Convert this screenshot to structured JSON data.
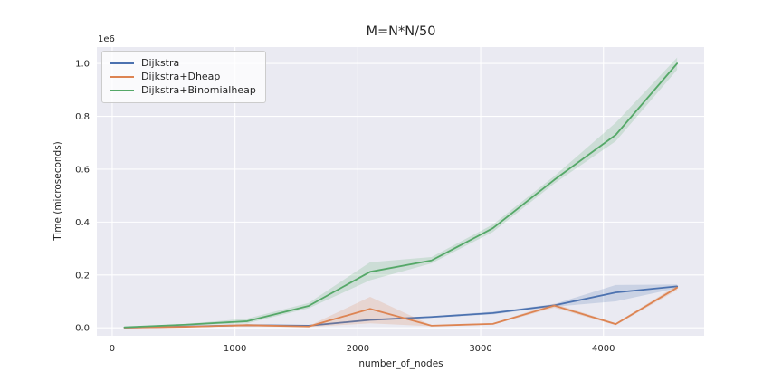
{
  "style": {
    "figure_background": "#ffffff",
    "plot_background": "#eaeaf2",
    "grid_color": "#ffffff",
    "text_color": "#262626",
    "legend_border_color": "#cccccc"
  },
  "chart_data": {
    "type": "line",
    "title": "M=N*N/50",
    "xlabel": "number_of_nodes",
    "ylabel": "Time (microseconds)",
    "y_axis_offset_text": "1e6",
    "grid": true,
    "legend_position": "upper-left",
    "xlim": [
      -125,
      4820
    ],
    "ylim": [
      -30000,
      1062000
    ],
    "xticks": [
      {
        "label": "0",
        "value": 0
      },
      {
        "label": "1000",
        "value": 1000
      },
      {
        "label": "2000",
        "value": 2000
      },
      {
        "label": "3000",
        "value": 3000
      },
      {
        "label": "4000",
        "value": 4000
      }
    ],
    "yticks": [
      {
        "label": "0.0",
        "value": 0
      },
      {
        "label": "0.2",
        "value": 200000
      },
      {
        "label": "0.4",
        "value": 400000
      },
      {
        "label": "0.6",
        "value": 600000
      },
      {
        "label": "0.8",
        "value": 800000
      },
      {
        "label": "1.0",
        "value": 1000000
      }
    ],
    "x": [
      100,
      600,
      1100,
      1600,
      2100,
      2600,
      3100,
      3600,
      4100,
      4600
    ],
    "series": [
      {
        "name": "Dijkstra",
        "color": "#4c72b0",
        "values": [
          1000,
          5000,
          10000,
          8000,
          30000,
          41000,
          56000,
          85000,
          134000,
          157000
        ],
        "band_lo": [
          600,
          4000,
          8000,
          6000,
          26000,
          38000,
          51000,
          80000,
          100000,
          150000
        ],
        "band_hi": [
          1400,
          6000,
          12000,
          10000,
          34000,
          44000,
          61000,
          90000,
          162000,
          164000
        ]
      },
      {
        "name": "Dijkstra+Dheap",
        "color": "#dd8452",
        "values": [
          900,
          4000,
          10000,
          5000,
          72000,
          8000,
          15000,
          84000,
          14000,
          152000
        ],
        "band_lo": [
          500,
          3000,
          5000,
          3000,
          17000,
          6000,
          12000,
          76000,
          10000,
          143000
        ],
        "band_hi": [
          1300,
          5000,
          15000,
          7000,
          117000,
          10000,
          18000,
          92000,
          18000,
          161000
        ]
      },
      {
        "name": "Dijkstra+Binomialheap",
        "color": "#55a868",
        "values": [
          2000,
          12000,
          25000,
          83000,
          212000,
          255000,
          377000,
          560000,
          730000,
          1000000
        ],
        "band_lo": [
          1200,
          9000,
          17000,
          74000,
          180000,
          244000,
          363000,
          546000,
          706000,
          976000
        ],
        "band_hi": [
          2800,
          15000,
          35000,
          94000,
          248000,
          268000,
          391000,
          574000,
          776000,
          1022000
        ]
      }
    ]
  }
}
